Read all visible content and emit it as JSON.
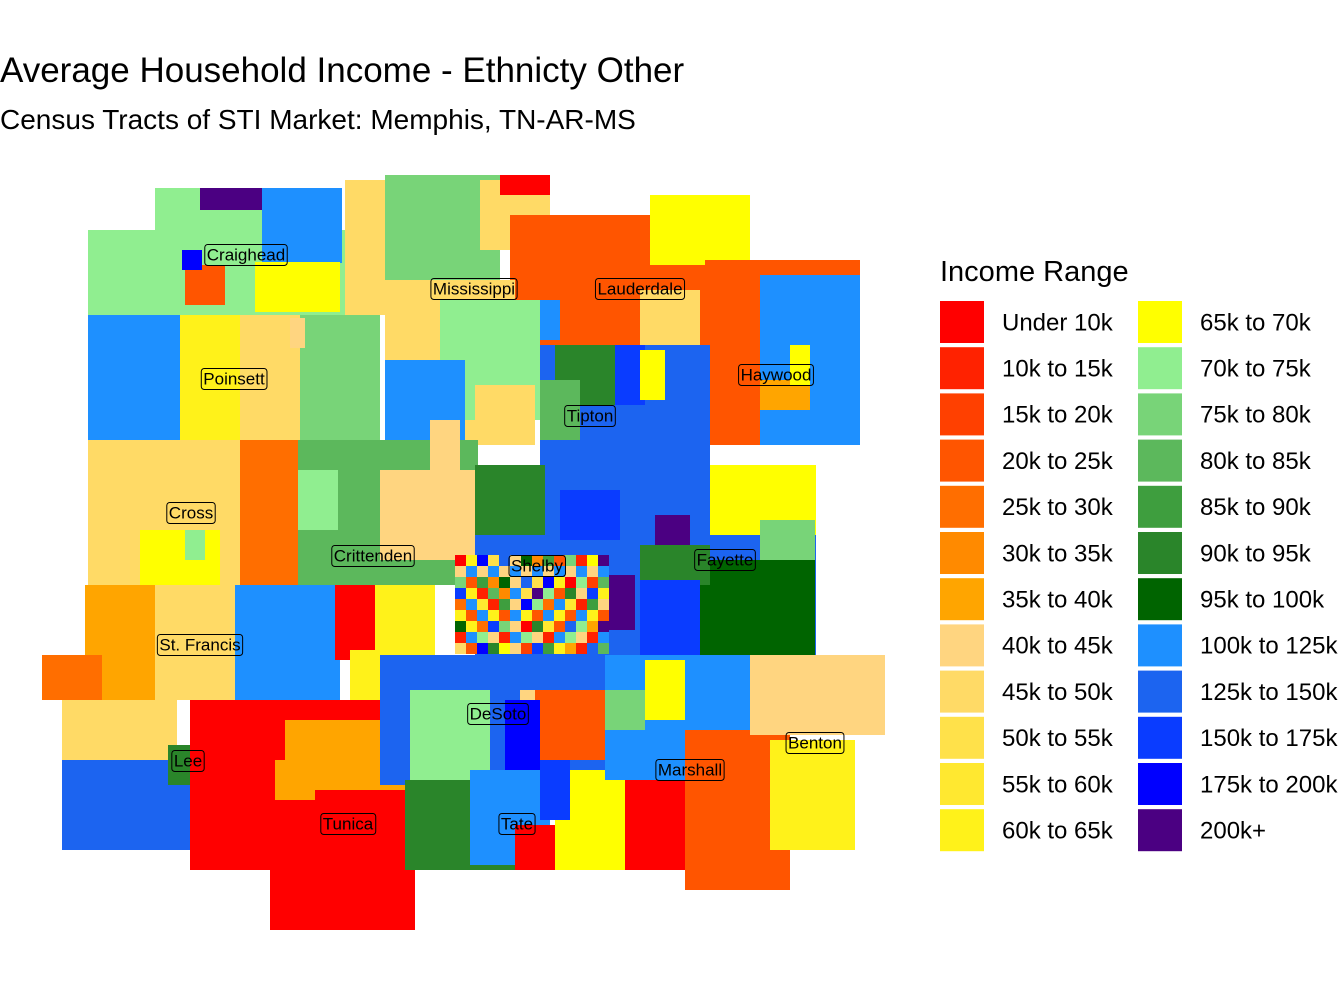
{
  "title": "Average Household Income - Ethnicty Other",
  "subtitle": "Census Tracts of STI Market: Memphis, TN-AR-MS",
  "legend": {
    "title": "Income Range",
    "items": [
      {
        "label": "Under 10k",
        "color": "#FF0000"
      },
      {
        "label": "10k to 15k",
        "color": "#FF2200"
      },
      {
        "label": "15k to 20k",
        "color": "#FF4000"
      },
      {
        "label": "20k to 25k",
        "color": "#FF5500"
      },
      {
        "label": "25k to 30k",
        "color": "#FF6E00"
      },
      {
        "label": "30k to 35k",
        "color": "#FF8A00"
      },
      {
        "label": "35k to 40k",
        "color": "#FFA500"
      },
      {
        "label": "40k to 45k",
        "color": "#FFD580"
      },
      {
        "label": "45k to 50k",
        "color": "#FFDA66"
      },
      {
        "label": "50k to 55k",
        "color": "#FFE14A"
      },
      {
        "label": "55k to 60k",
        "color": "#FFE830"
      },
      {
        "label": "60k to 65k",
        "color": "#FFF21A"
      },
      {
        "label": "65k to 70k",
        "color": "#FFFF00"
      },
      {
        "label": "70k to 75k",
        "color": "#90EE90"
      },
      {
        "label": "75k to 80k",
        "color": "#78D478"
      },
      {
        "label": "80k to 85k",
        "color": "#5CB85C"
      },
      {
        "label": "85k to 90k",
        "color": "#3E9E3E"
      },
      {
        "label": "90k to 95k",
        "color": "#2A852A"
      },
      {
        "label": "95k to 100k",
        "color": "#006400"
      },
      {
        "label": "100k to 125k",
        "color": "#1E90FF"
      },
      {
        "label": "125k to 150k",
        "color": "#1C64F0"
      },
      {
        "label": "150k to 175k",
        "color": "#0A3CFF"
      },
      {
        "label": "175k to 200k",
        "color": "#0000FF"
      },
      {
        "label": "200k+",
        "color": "#4B0082"
      }
    ]
  },
  "counties": [
    "Craighead",
    "Mississippi",
    "Lauderdale",
    "Poinsett",
    "Haywood",
    "Tipton",
    "Cross",
    "Crittenden",
    "Shelby",
    "Fayette",
    "St. Francis",
    "DeSoto",
    "Benton",
    "Lee",
    "Marshall",
    "Tunica",
    "Tate"
  ]
}
